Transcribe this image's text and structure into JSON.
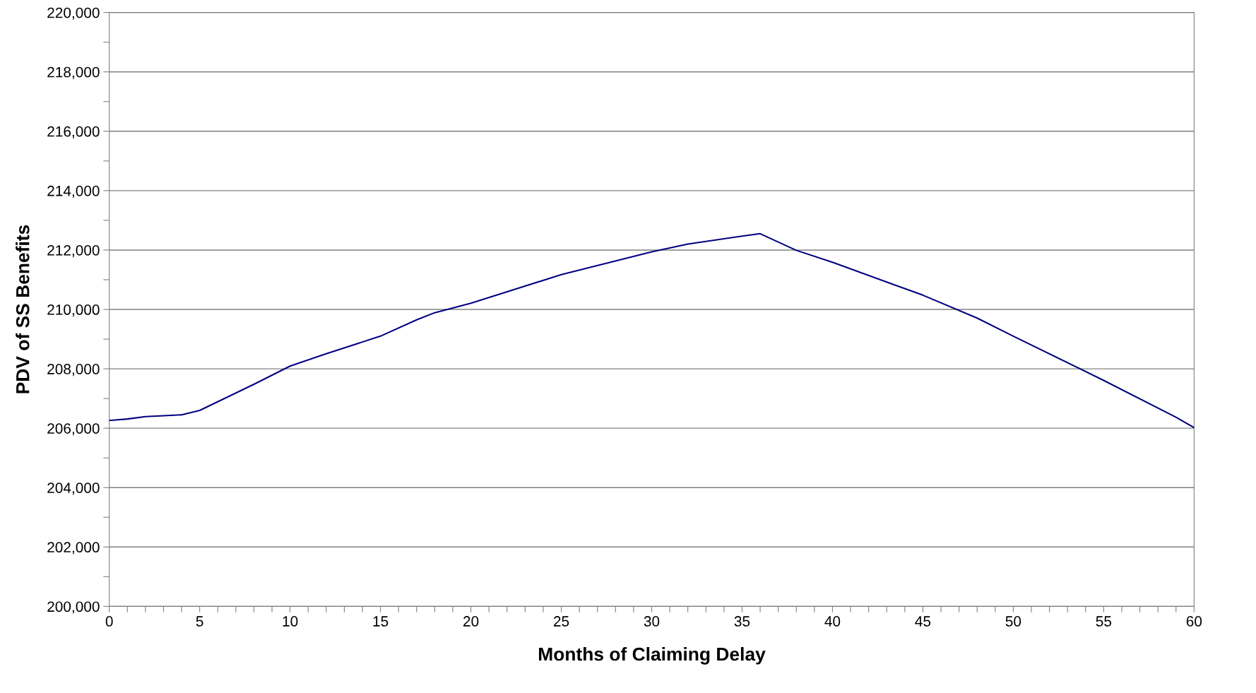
{
  "chart_data": {
    "type": "line",
    "xlabel": "Months of Claiming Delay",
    "ylabel": "PDV of SS Benefits",
    "x": [
      0,
      1,
      2,
      3,
      4,
      5,
      8,
      10,
      12,
      15,
      17,
      18,
      20,
      25,
      30,
      32,
      35,
      36,
      38,
      40,
      45,
      48,
      50,
      55,
      59,
      60
    ],
    "series": [
      {
        "color": "#000080",
        "values": [
          206260,
          206310,
          206390,
          206420,
          206450,
          206600,
          207480,
          208090,
          208510,
          209100,
          209650,
          209890,
          210210,
          211170,
          211940,
          212200,
          212470,
          212550,
          211990,
          211590,
          210480,
          209710,
          209100,
          207610,
          206370,
          206020
        ]
      }
    ],
    "xlim": [
      0,
      60
    ],
    "ylim": [
      200000,
      220000
    ],
    "xticks": [
      0,
      {
        "value": 1,
        "label": null
      },
      {
        "value": 2,
        "label": null
      },
      {
        "value": 3,
        "label": null
      },
      {
        "value": 4,
        "label": null
      },
      5,
      {
        "value": 6,
        "label": null
      },
      {
        "value": 7,
        "label": null
      },
      {
        "value": 8,
        "label": null
      },
      {
        "value": 9,
        "label": null
      },
      10,
      {
        "value": 11,
        "label": null
      },
      {
        "value": 12,
        "label": null
      },
      {
        "value": 13,
        "label": null
      },
      {
        "value": 14,
        "label": null
      },
      15,
      {
        "value": 16,
        "label": null
      },
      {
        "value": 17,
        "label": null
      },
      {
        "value": 18,
        "label": null
      },
      {
        "value": 19,
        "label": null
      },
      20,
      {
        "value": 21,
        "label": null
      },
      {
        "value": 22,
        "label": null
      },
      {
        "value": 23,
        "label": null
      },
      {
        "value": 24,
        "label": null
      },
      25,
      {
        "value": 26,
        "label": null
      },
      {
        "value": 27,
        "label": null
      },
      {
        "value": 28,
        "label": null
      },
      {
        "value": 29,
        "label": null
      },
      30,
      {
        "value": 31,
        "label": null
      },
      {
        "value": 32,
        "label": null
      },
      {
        "value": 33,
        "label": null
      },
      {
        "value": 34,
        "label": null
      },
      35,
      {
        "value": 36,
        "label": null
      },
      {
        "value": 37,
        "label": null
      },
      {
        "value": 38,
        "label": null
      },
      {
        "value": 39,
        "label": null
      },
      40,
      {
        "value": 41,
        "label": null
      },
      {
        "value": 42,
        "label": null
      },
      {
        "value": 43,
        "label": null
      },
      {
        "value": 44,
        "label": null
      },
      45,
      {
        "value": 46,
        "label": null
      },
      {
        "value": 47,
        "label": null
      },
      {
        "value": 48,
        "label": null
      },
      {
        "value": 49,
        "label": null
      },
      50,
      {
        "value": 51,
        "label": null
      },
      {
        "value": 52,
        "label": null
      },
      {
        "value": 53,
        "label": null
      },
      {
        "value": 54,
        "label": null
      },
      55,
      {
        "value": 56,
        "label": null
      },
      {
        "value": 57,
        "label": null
      },
      {
        "value": 58,
        "label": null
      },
      {
        "value": 59,
        "label": null
      },
      60
    ],
    "yticks": [
      {
        "value": 200000,
        "label": "200,000"
      },
      {
        "value": 201000,
        "label": null
      },
      {
        "value": 202000,
        "label": "202,000"
      },
      {
        "value": 203000,
        "label": null
      },
      {
        "value": 204000,
        "label": "204,000"
      },
      {
        "value": 205000,
        "label": null
      },
      {
        "value": 206000,
        "label": "206,000"
      },
      {
        "value": 207000,
        "label": null
      },
      {
        "value": 208000,
        "label": "208,000"
      },
      {
        "value": 209000,
        "label": null
      },
      {
        "value": 210000,
        "label": "210,000"
      },
      {
        "value": 211000,
        "label": null
      },
      {
        "value": 212000,
        "label": "212,000"
      },
      {
        "value": 213000,
        "label": null
      },
      {
        "value": 214000,
        "label": "214,000"
      },
      {
        "value": 215000,
        "label": null
      },
      {
        "value": 216000,
        "label": "216,000"
      },
      {
        "value": 217000,
        "label": null
      },
      {
        "value": 218000,
        "label": "218,000"
      },
      {
        "value": 219000,
        "label": null
      },
      {
        "value": 220000,
        "label": "220,000"
      }
    ],
    "grid": "y",
    "marker": "none",
    "line_style": "solid"
  }
}
